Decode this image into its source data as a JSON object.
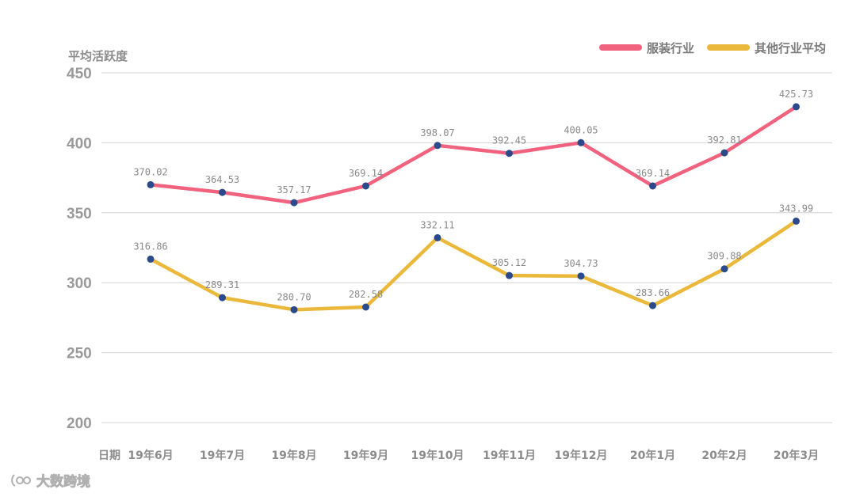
{
  "chart_data": {
    "type": "line",
    "title": "",
    "ylabel": "平均活跃度",
    "xlabel": "日期",
    "ylim": [
      200,
      450
    ],
    "yticks": [
      450,
      400,
      350,
      300,
      250,
      200
    ],
    "categories": [
      "19年6月",
      "19年7月",
      "19年8月",
      "19年9月",
      "19年10月",
      "19年11月",
      "19年12月",
      "20年1月",
      "20年2月",
      "20年3月"
    ],
    "series": [
      {
        "name": "服装行业",
        "color": "#f0627e",
        "values": [
          370.02,
          364.53,
          357.17,
          369.14,
          398.07,
          392.45,
          400.05,
          369.14,
          392.81,
          425.73
        ],
        "labels": [
          "370.02",
          "364.53",
          "357.17",
          "369.14",
          "398.07",
          "392.45",
          "400.05",
          "369.14",
          "392.81",
          "425.73"
        ]
      },
      {
        "name": "其他行业平均",
        "color": "#eab83a",
        "values": [
          316.86,
          289.31,
          280.7,
          282.58,
          332.11,
          305.12,
          304.73,
          283.66,
          309.88,
          343.99
        ],
        "labels": [
          "316.86",
          "289.31",
          "280.70",
          "282.58",
          "332.11",
          "305.12",
          "304.73",
          "283.66",
          "309.88",
          "343.99"
        ]
      }
    ],
    "marker_color": "#2a4a8c",
    "grid": true,
    "legend_position": "top-right"
  },
  "watermark": {
    "text": "大数跨境",
    "icon": "logo-icon"
  }
}
